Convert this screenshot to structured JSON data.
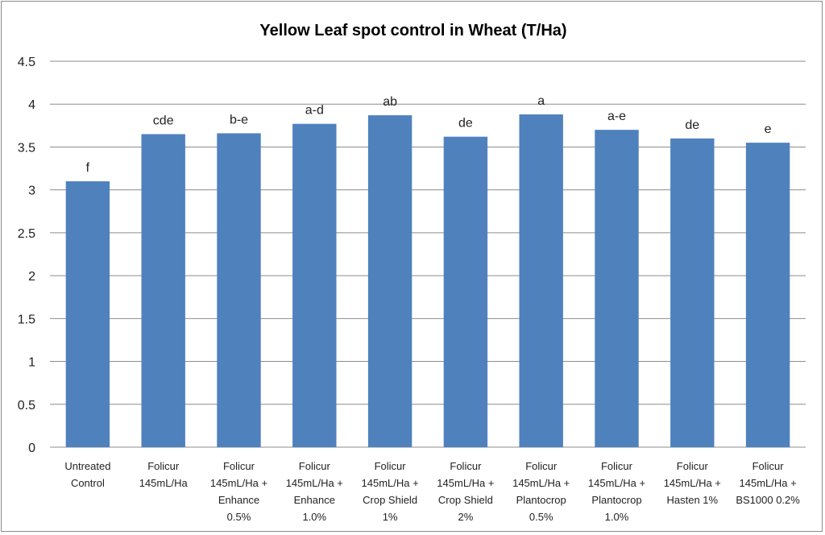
{
  "chart_data": {
    "type": "bar",
    "title": "Yellow Leaf spot control in Wheat (T/Ha)",
    "xlabel": "",
    "ylabel": "",
    "ylim": [
      0,
      4.5
    ],
    "yticks": [
      "0",
      "0.5",
      "1",
      "1.5",
      "2",
      "2.5",
      "3",
      "3.5",
      "4",
      "4.5"
    ],
    "grid": true,
    "legend": "none",
    "bar_color": "#4f81bd",
    "categories": [
      [
        "Untreated",
        "Control"
      ],
      [
        "Folicur",
        "145mL/Ha"
      ],
      [
        "Folicur",
        "145mL/Ha +",
        "Enhance",
        "0.5%"
      ],
      [
        "Folicur",
        "145mL/Ha +",
        "Enhance",
        "1.0%"
      ],
      [
        "Folicur",
        "145mL/Ha +",
        "Crop Shield",
        "1%"
      ],
      [
        "Folicur",
        "145mL/Ha +",
        "Crop Shield",
        "2%"
      ],
      [
        "Folicur",
        "145mL/Ha +",
        "Plantocrop",
        "0.5%"
      ],
      [
        "Folicur",
        "145mL/Ha +",
        "Plantocrop",
        "1.0%"
      ],
      [
        "Folicur",
        "145mL/Ha +",
        "Hasten 1%"
      ],
      [
        "Folicur",
        "145mL/Ha +",
        "BS1000 0.2%"
      ]
    ],
    "values": [
      3.1,
      3.65,
      3.66,
      3.77,
      3.87,
      3.62,
      3.88,
      3.7,
      3.6,
      3.55
    ],
    "data_labels": [
      "f",
      "cde",
      "b-e",
      "a-d",
      "ab",
      "de",
      "a",
      "a-e",
      "de",
      "e"
    ]
  }
}
